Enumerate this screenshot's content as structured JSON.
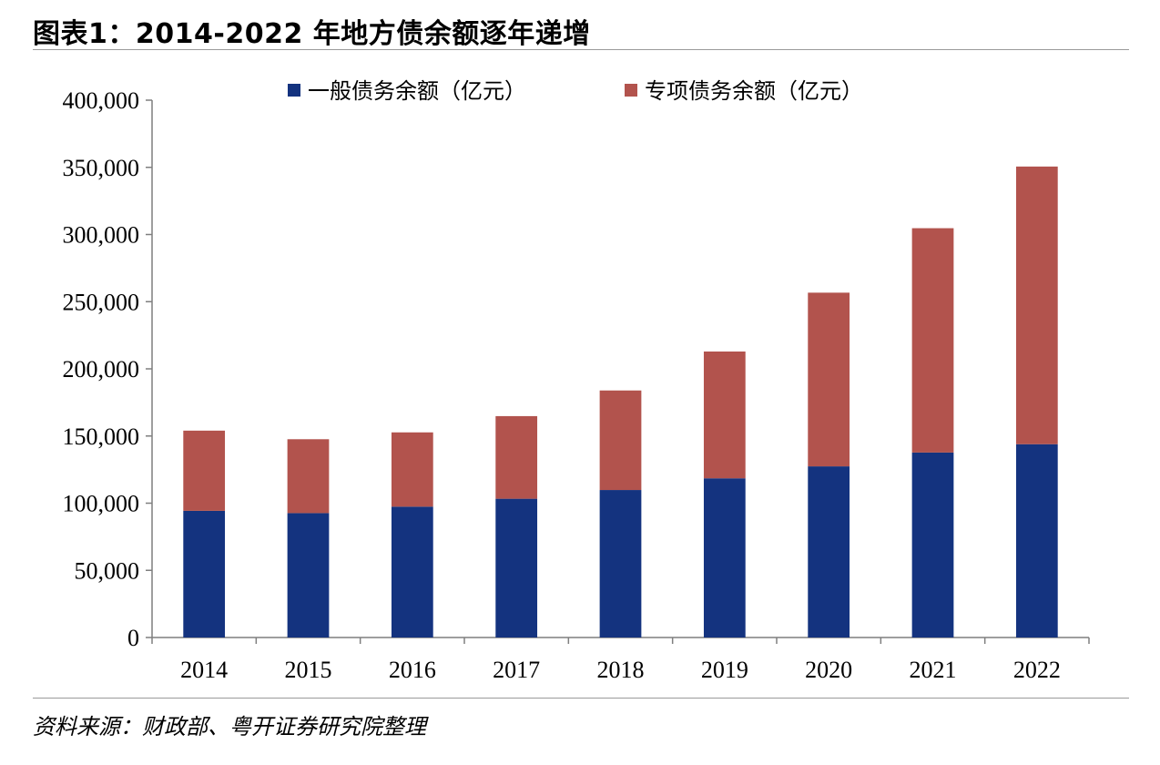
{
  "header": {
    "title": "图表1：2014-2022 年地方债余额逐年递增"
  },
  "footer": {
    "source": "资料来源：财政部、粤开证券研究院整理"
  },
  "chart_data": {
    "type": "bar",
    "stacked": true,
    "title": "图表1：2014-2022 年地方债余额逐年递增",
    "xlabel": "",
    "ylabel": "",
    "categories": [
      "2014",
      "2015",
      "2016",
      "2017",
      "2018",
      "2019",
      "2020",
      "2021",
      "2022"
    ],
    "ylim": [
      0,
      400000
    ],
    "yticks": [
      0,
      50000,
      100000,
      150000,
      200000,
      250000,
      300000,
      350000,
      400000
    ],
    "ytick_labels": [
      "0",
      "50,000",
      "100,000",
      "150,000",
      "200,000",
      "250,000",
      "300,000",
      "350,000",
      "400,000"
    ],
    "grid": false,
    "legend_position": "top-center",
    "series": [
      {
        "name": "一般债务余额（亿元）",
        "color": "#14337f",
        "values": [
          94300,
          92600,
          97400,
          103300,
          109800,
          118500,
          127400,
          137700,
          143900
        ]
      },
      {
        "name": "专项债务余额（亿元）",
        "color": "#b2534d",
        "values": [
          59700,
          55000,
          55300,
          61500,
          74100,
          94400,
          129300,
          167000,
          206700
        ]
      }
    ]
  }
}
